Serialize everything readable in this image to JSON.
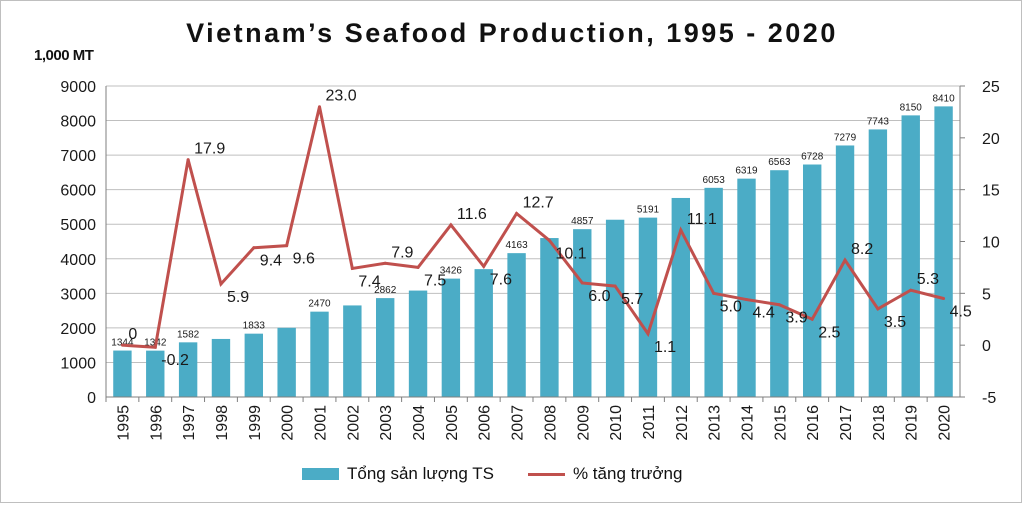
{
  "colors": {
    "bar": "#4bacc6",
    "line": "#c0504d",
    "grid": "#bfbfbf",
    "axis": "#7f7f7f",
    "text": "#1a1a1a"
  },
  "chart_data": {
    "type": "bar",
    "title": "Vietnam’s Seafood Production, 1995 - 2020",
    "ylabel": "1,000 MT",
    "ylim": [
      0,
      9000
    ],
    "y2lim": [
      -5,
      25
    ],
    "yticks": [
      "0",
      "1000",
      "2000",
      "3000",
      "4000",
      "5000",
      "6000",
      "7000",
      "8000",
      "9000"
    ],
    "y2ticks": [
      "-5",
      "0",
      "5",
      "10",
      "15",
      "20",
      "25"
    ],
    "categories": [
      "1995",
      "1996",
      "1997",
      "1998",
      "1999",
      "2000",
      "2001",
      "2002",
      "2003",
      "2004",
      "2005",
      "2006",
      "2007",
      "2008",
      "2009",
      "2010",
      "2011",
      "2012",
      "2013",
      "2014",
      "2015",
      "2016",
      "2017",
      "2018",
      "2019",
      "2020"
    ],
    "grid": true,
    "legend_position": "bottom",
    "series": [
      {
        "name": "Tổng sản lượng TS",
        "type": "bar",
        "axis": "left",
        "values": [
          1344,
          1342,
          1582,
          1680,
          1833,
          2003,
          2470,
          2650,
          2862,
          3080,
          3426,
          3700,
          4163,
          4600,
          4857,
          5130,
          5191,
          5760,
          6053,
          6319,
          6563,
          6728,
          7279,
          7743,
          8150,
          8410
        ],
        "labels": [
          "1344",
          "1342",
          "1582",
          "",
          "1833",
          "",
          "2470",
          "",
          "2862",
          "",
          "3426",
          "",
          "4163",
          "",
          "4857",
          "",
          "5191",
          "",
          "6053",
          "6319",
          "6563",
          "6728",
          "7279",
          "7743",
          "8150",
          "8410"
        ]
      },
      {
        "name": "% tăng trưởng",
        "type": "line",
        "axis": "right",
        "values": [
          0,
          -0.2,
          17.9,
          5.9,
          9.4,
          9.6,
          23.0,
          7.4,
          7.9,
          7.5,
          11.6,
          7.6,
          12.7,
          10.1,
          6.0,
          5.7,
          1.1,
          11.1,
          5.0,
          4.4,
          3.9,
          2.5,
          8.2,
          3.5,
          5.3,
          4.5
        ],
        "labels": [
          "0",
          "-0.2",
          "17.9",
          "5.9",
          "9.4",
          "9.6",
          "23.0",
          "7.4",
          "7.9",
          "7.5",
          "11.6",
          "7.6",
          "12.7",
          "10.1",
          "6.0",
          "5.7",
          "1.1",
          "11.1",
          "5.0",
          "4.4",
          "3.9",
          "2.5",
          "8.2",
          "3.5",
          "5.3",
          "4.5"
        ]
      }
    ]
  }
}
